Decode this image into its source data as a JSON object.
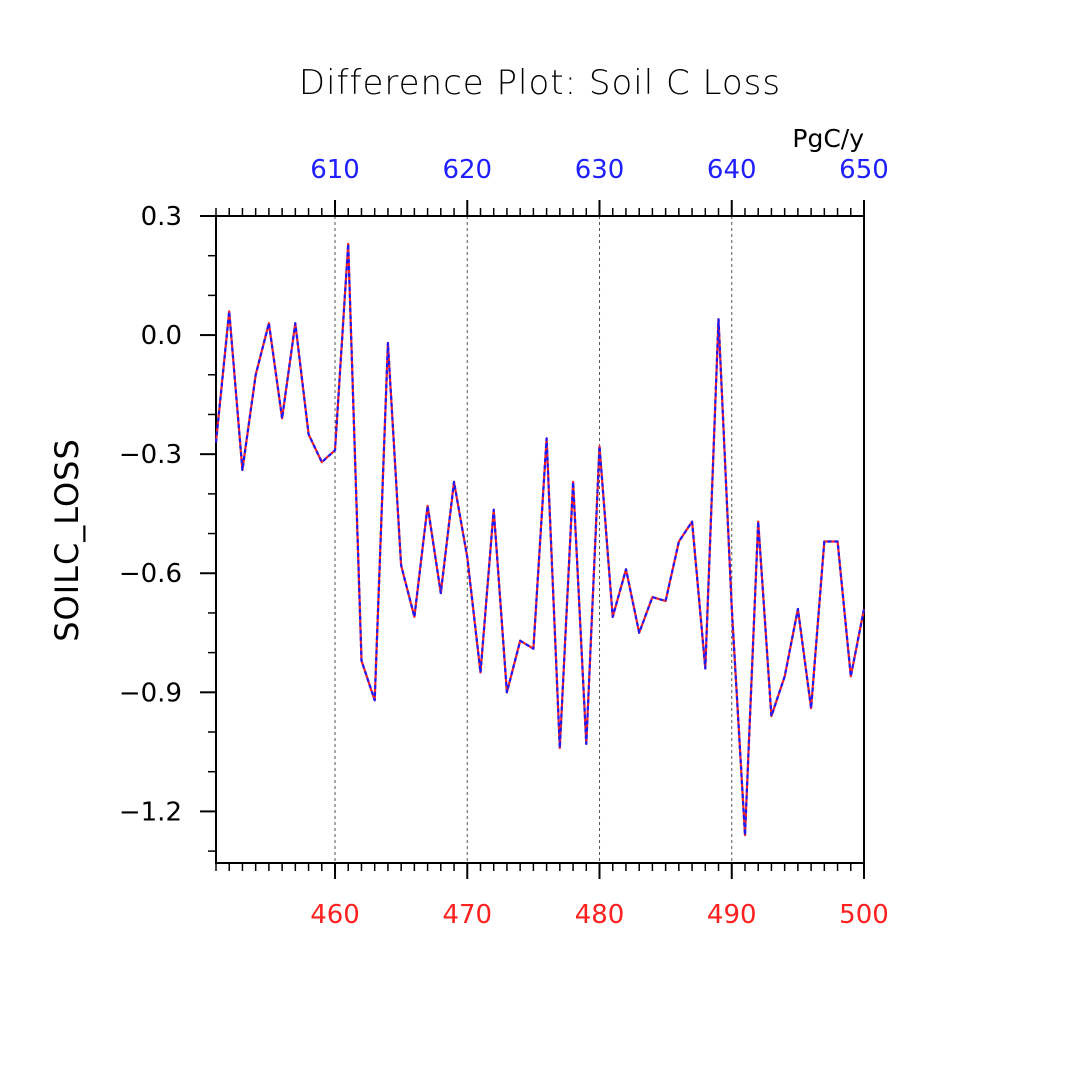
{
  "chart_data": {
    "type": "line",
    "title": "Difference Plot: Soil C Loss",
    "units": "PgC/y",
    "ylabel": "SOILC_LOSS",
    "xlabel": "",
    "xlim": [
      451,
      500
    ],
    "ylim": [
      -1.33,
      0.3
    ],
    "y_ticks": [
      0.3,
      0.0,
      -0.3,
      -0.6,
      -0.9,
      -1.2
    ],
    "y_tick_labels": [
      "0.3",
      "0.0",
      "−0.3",
      "−0.6",
      "−0.9",
      "−1.2"
    ],
    "x_bottom_ticks": [
      460,
      470,
      480,
      490,
      500
    ],
    "x_bottom_tick_labels": [
      "460",
      "470",
      "480",
      "490",
      "500"
    ],
    "x_top_ticks": [
      460,
      470,
      480,
      490,
      500
    ],
    "x_top_tick_labels": [
      "610",
      "620",
      "630",
      "640",
      "650"
    ],
    "grid": "vertical dashed at major ticks",
    "colors": {
      "bottom_axis": "#ff2020",
      "top_axis": "#2020ff",
      "series_a": "#ff2020",
      "series_b": "#1a1aff"
    },
    "x": [
      451,
      452,
      453,
      454,
      455,
      456,
      457,
      458,
      459,
      460,
      461,
      462,
      463,
      464,
      465,
      466,
      467,
      468,
      469,
      470,
      471,
      472,
      473,
      474,
      475,
      476,
      477,
      478,
      479,
      480,
      481,
      482,
      483,
      484,
      485,
      486,
      487,
      488,
      489,
      490,
      491,
      492,
      493,
      494,
      495,
      496,
      497,
      498,
      499,
      500
    ],
    "series": [
      {
        "values": [
          -0.27,
          0.06,
          -0.34,
          -0.1,
          0.03,
          -0.21,
          0.03,
          -0.25,
          -0.32,
          -0.29,
          0.23,
          -0.82,
          -0.92,
          -0.02,
          -0.58,
          -0.71,
          -0.43,
          -0.65,
          -0.37,
          -0.56,
          -0.85,
          -0.44,
          -0.9,
          -0.77,
          -0.79,
          -0.26,
          -1.04,
          -0.37,
          -1.03,
          -0.28,
          -0.71,
          -0.59,
          -0.75,
          -0.66,
          -0.67,
          -0.52,
          -0.47,
          -0.84,
          0.04,
          -0.69,
          -1.26,
          -0.47,
          -0.96,
          -0.86,
          -0.69,
          -0.94,
          -0.52,
          -0.52,
          -0.86,
          -0.69
        ]
      }
    ]
  }
}
